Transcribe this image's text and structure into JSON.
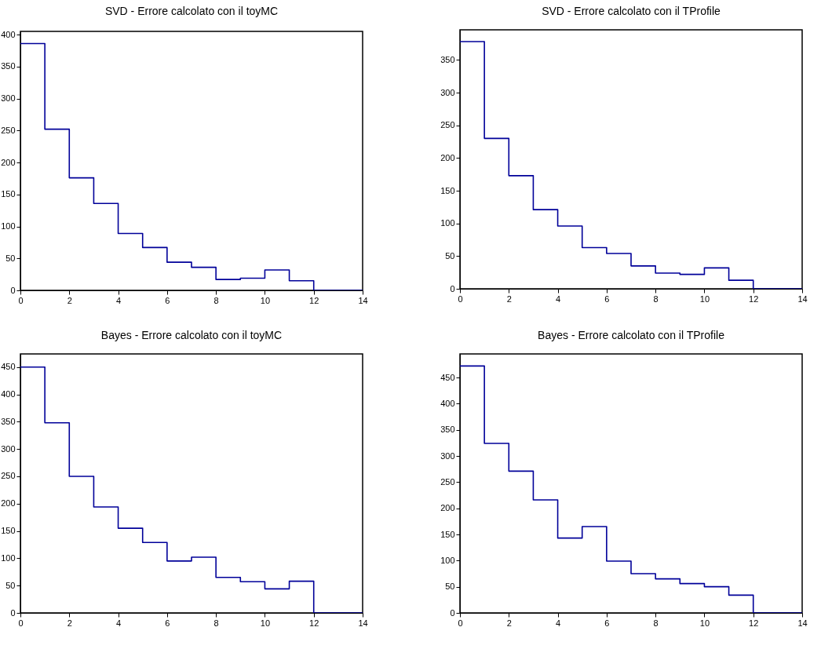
{
  "chart_data": [
    {
      "type": "histogram",
      "title": "SVD - Errore calcolato con il toyMC",
      "bins": [
        0,
        1,
        2,
        3,
        4,
        5,
        6,
        7,
        8,
        9,
        10,
        11,
        12,
        13,
        14
      ],
      "values": [
        386,
        252,
        176,
        136,
        89,
        67,
        44,
        36,
        17,
        19,
        32,
        15,
        0,
        0
      ],
      "color": "#000099",
      "xlim": [
        0,
        14
      ],
      "xticks": [
        0,
        2,
        4,
        6,
        8,
        10,
        12,
        14
      ],
      "ylim": [
        0,
        405
      ],
      "yticks": [
        0,
        50,
        100,
        150,
        200,
        250,
        300,
        350,
        400
      ]
    },
    {
      "type": "histogram",
      "title": "SVD - Errore calcolato con il TProfile",
      "bins": [
        0,
        1,
        2,
        3,
        4,
        5,
        6,
        7,
        8,
        9,
        10,
        11,
        12,
        13,
        14
      ],
      "values": [
        378,
        230,
        173,
        121,
        96,
        63,
        54,
        35,
        24,
        22,
        32,
        13,
        0,
        0
      ],
      "color": "#000099",
      "xlim": [
        0,
        14
      ],
      "xticks": [
        0,
        2,
        4,
        6,
        8,
        10,
        12,
        14
      ],
      "ylim": [
        0,
        396
      ],
      "yticks": [
        0,
        50,
        100,
        150,
        200,
        250,
        300,
        350
      ]
    },
    {
      "type": "histogram",
      "title": "Bayes - Errore calcolato con il toyMC",
      "bins": [
        0,
        1,
        2,
        3,
        4,
        5,
        6,
        7,
        8,
        9,
        10,
        11,
        12,
        13,
        14
      ],
      "values": [
        450,
        348,
        250,
        194,
        155,
        129,
        95,
        102,
        65,
        57,
        44,
        58,
        0,
        0
      ],
      "color": "#000099",
      "xlim": [
        0,
        14
      ],
      "xticks": [
        0,
        2,
        4,
        6,
        8,
        10,
        12,
        14
      ],
      "ylim": [
        0,
        474
      ],
      "yticks": [
        0,
        50,
        100,
        150,
        200,
        250,
        300,
        350,
        400,
        450
      ]
    },
    {
      "type": "histogram",
      "title": "Bayes - Errore calcolato con il TProfile",
      "bins": [
        0,
        1,
        2,
        3,
        4,
        5,
        6,
        7,
        8,
        9,
        10,
        11,
        12,
        13,
        14
      ],
      "values": [
        472,
        324,
        271,
        216,
        143,
        165,
        99,
        75,
        65,
        56,
        50,
        34,
        0,
        0
      ],
      "color": "#000099",
      "xlim": [
        0,
        14
      ],
      "xticks": [
        0,
        2,
        4,
        6,
        8,
        10,
        12,
        14
      ],
      "ylim": [
        0,
        495
      ],
      "yticks": [
        0,
        50,
        100,
        150,
        200,
        250,
        300,
        350,
        400,
        450
      ]
    }
  ]
}
